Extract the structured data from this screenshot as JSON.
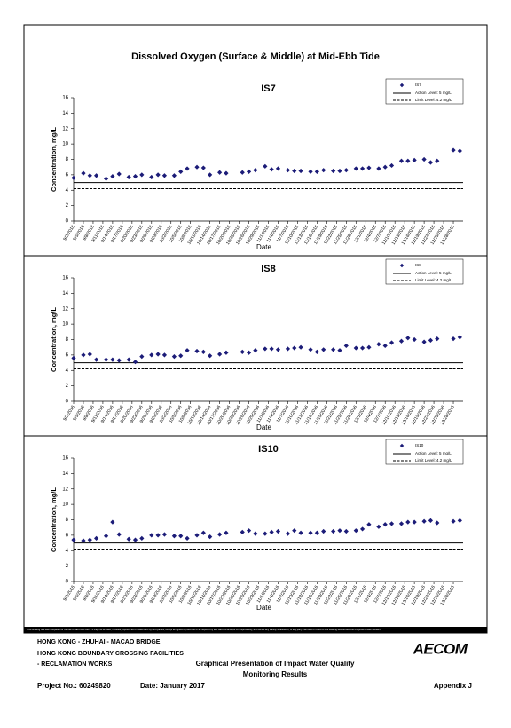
{
  "document": {
    "title": "Dissolved Oxygen (Surface & Middle) at Mid-Ebb Tide",
    "disclaimer": "This Drawing has been prepared for the use of AECOM's client. It may not be used, modified, reproduced or relied upon by third parties, except as agreed by AECOM or as required by law. AECOM accepts no responsibility, and denies any liability whatsoever, to any party that uses or relies on this drawing without AECOM's express written consent.",
    "project_lines": [
      "HONG KONG - ZHUHAI - MACAO BRIDGE",
      "HONG KONG BOUNDARY CROSSING FACILITIES",
      "- RECLAMATION WORKS"
    ],
    "report_title": [
      "Graphical Presentation of Impact Water Quality",
      "Monitoring Results"
    ],
    "project_no": "Project No.: 60249820",
    "date": "Date: January 2017",
    "appendix": "Appendix J",
    "logo": "AECOM"
  },
  "chart_data": [
    {
      "type": "scatter",
      "title": "IS7",
      "xlabel": "Date",
      "ylabel": "Concentration, mg/L",
      "xlim": [
        "9/2/2016",
        "12/31/2016"
      ],
      "ylim": [
        0,
        16
      ],
      "yticks": [
        0,
        2,
        4,
        6,
        8,
        10,
        12,
        14,
        16
      ],
      "xticks": [
        "9/2/2016",
        "9/5/2016",
        "9/8/2016",
        "9/11/2016",
        "9/14/2016",
        "9/17/2016",
        "9/20/2016",
        "9/23/2016",
        "9/26/2016",
        "9/29/2016",
        "10/2/2016",
        "10/5/2016",
        "10/8/2016",
        "10/11/2016",
        "10/14/2016",
        "10/17/2016",
        "10/20/2016",
        "10/23/2016",
        "10/26/2016",
        "10/29/2016",
        "11/1/2016",
        "11/4/2016",
        "11/7/2016",
        "11/10/2016",
        "11/13/2016",
        "11/16/2016",
        "11/19/2016",
        "11/22/2016",
        "11/25/2016",
        "11/28/2016",
        "12/1/2016",
        "12/4/2016",
        "12/7/2016",
        "12/10/2016",
        "12/13/2016",
        "12/16/2016",
        "12/19/2016",
        "12/22/2016",
        "12/25/2016",
        "12/28/2016"
      ],
      "x": [
        "9/2/2016",
        "9/5/2016",
        "9/7/2016",
        "9/9/2016",
        "9/12/2016",
        "9/14/2016",
        "9/16/2016",
        "9/19/2016",
        "9/21/2016",
        "9/23/2016",
        "9/26/2016",
        "9/28/2016",
        "9/30/2016",
        "10/3/2016",
        "10/5/2016",
        "10/7/2016",
        "10/10/2016",
        "10/12/2016",
        "10/14/2016",
        "10/17/2016",
        "10/19/2016",
        "10/24/2016",
        "10/26/2016",
        "10/28/2016",
        "10/31/2016",
        "11/2/2016",
        "11/4/2016",
        "11/7/2016",
        "11/9/2016",
        "11/11/2016",
        "11/14/2016",
        "11/16/2016",
        "11/18/2016",
        "11/21/2016",
        "11/23/2016",
        "11/25/2016",
        "11/28/2016",
        "11/30/2016",
        "12/2/2016",
        "12/5/2016",
        "12/7/2016",
        "12/9/2016",
        "12/12/2016",
        "12/14/2016",
        "12/16/2016",
        "12/19/2016",
        "12/21/2016",
        "12/23/2016",
        "12/28/2016",
        "12/30/2016"
      ],
      "series": [
        {
          "name": "IS7",
          "color": "#1c1c78",
          "values": [
            5.6,
            6.2,
            5.9,
            5.9,
            5.5,
            5.8,
            6.1,
            5.7,
            5.8,
            6.0,
            5.7,
            6.0,
            5.9,
            5.9,
            6.4,
            6.8,
            7.0,
            6.9,
            6.0,
            6.3,
            6.2,
            6.3,
            6.4,
            6.6,
            7.1,
            6.7,
            6.8,
            6.6,
            6.5,
            6.5,
            6.4,
            6.4,
            6.6,
            6.5,
            6.5,
            6.6,
            6.8,
            6.8,
            6.9,
            6.8,
            7.0,
            7.2,
            7.8,
            7.8,
            7.9,
            8.0,
            7.6,
            7.8,
            9.2,
            9.1
          ]
        }
      ],
      "reference_lines": [
        {
          "name": "Action Level: 5 mg/L",
          "value": 5,
          "style": "solid"
        },
        {
          "name": "Limit Level: 4.2 mg/L",
          "value": 4.2,
          "style": "dashed"
        }
      ]
    },
    {
      "type": "scatter",
      "title": "IS8",
      "xlabel": "Date",
      "ylabel": "Concentration, mg/L",
      "xlim": [
        "9/2/2016",
        "12/31/2016"
      ],
      "ylim": [
        0,
        16
      ],
      "yticks": [
        0,
        2,
        4,
        6,
        8,
        10,
        12,
        14,
        16
      ],
      "xticks": [
        "9/2/2016",
        "9/5/2016",
        "9/8/2016",
        "9/11/2016",
        "9/14/2016",
        "9/17/2016",
        "9/20/2016",
        "9/23/2016",
        "9/26/2016",
        "9/29/2016",
        "10/2/2016",
        "10/5/2016",
        "10/8/2016",
        "10/11/2016",
        "10/14/2016",
        "10/17/2016",
        "10/20/2016",
        "10/23/2016",
        "10/26/2016",
        "10/29/2016",
        "11/1/2016",
        "11/4/2016",
        "11/7/2016",
        "11/10/2016",
        "11/13/2016",
        "11/16/2016",
        "11/19/2016",
        "11/22/2016",
        "11/25/2016",
        "11/28/2016",
        "12/1/2016",
        "12/4/2016",
        "12/7/2016",
        "12/10/2016",
        "12/13/2016",
        "12/16/2016",
        "12/19/2016",
        "12/22/2016",
        "12/25/2016",
        "12/28/2016"
      ],
      "x": [
        "9/2/2016",
        "9/5/2016",
        "9/7/2016",
        "9/9/2016",
        "9/12/2016",
        "9/14/2016",
        "9/16/2016",
        "9/19/2016",
        "9/21/2016",
        "9/23/2016",
        "9/26/2016",
        "9/28/2016",
        "9/30/2016",
        "10/3/2016",
        "10/5/2016",
        "10/7/2016",
        "10/10/2016",
        "10/12/2016",
        "10/14/2016",
        "10/17/2016",
        "10/19/2016",
        "10/24/2016",
        "10/26/2016",
        "10/28/2016",
        "10/31/2016",
        "11/2/2016",
        "11/4/2016",
        "11/7/2016",
        "11/9/2016",
        "11/11/2016",
        "11/14/2016",
        "11/16/2016",
        "11/18/2016",
        "11/21/2016",
        "11/23/2016",
        "11/25/2016",
        "11/28/2016",
        "11/30/2016",
        "12/2/2016",
        "12/5/2016",
        "12/7/2016",
        "12/9/2016",
        "12/12/2016",
        "12/14/2016",
        "12/16/2016",
        "12/19/2016",
        "12/21/2016",
        "12/23/2016",
        "12/28/2016",
        "12/30/2016"
      ],
      "series": [
        {
          "name": "IS8",
          "color": "#1c1c78",
          "values": [
            5.6,
            6.0,
            6.1,
            5.4,
            5.4,
            5.4,
            5.3,
            5.4,
            5.1,
            5.8,
            6.0,
            6.1,
            6.0,
            5.8,
            5.9,
            6.6,
            6.5,
            6.4,
            5.9,
            6.1,
            6.3,
            6.4,
            6.3,
            6.6,
            6.8,
            6.8,
            6.7,
            6.8,
            6.9,
            7.0,
            6.7,
            6.4,
            6.7,
            6.7,
            6.6,
            7.2,
            6.9,
            6.9,
            7.0,
            7.4,
            7.2,
            7.6,
            7.8,
            8.2,
            8.0,
            7.7,
            7.9,
            8.1,
            8.1,
            8.3
          ]
        }
      ],
      "reference_lines": [
        {
          "name": "Action Level: 5 mg/L",
          "value": 5,
          "style": "solid"
        },
        {
          "name": "Limit Level: 4.2 mg/L",
          "value": 4.2,
          "style": "dashed"
        }
      ]
    },
    {
      "type": "scatter",
      "title": "IS10",
      "xlabel": "Date",
      "ylabel": "Concentration, mg/L",
      "xlim": [
        "9/2/2016",
        "12/31/2016"
      ],
      "ylim": [
        0,
        16
      ],
      "yticks": [
        0,
        2,
        4,
        6,
        8,
        10,
        12,
        14,
        16
      ],
      "xticks": [
        "9/2/2016",
        "9/5/2016",
        "9/8/2016",
        "9/11/2016",
        "9/14/2016",
        "9/17/2016",
        "9/20/2016",
        "9/23/2016",
        "9/26/2016",
        "9/29/2016",
        "10/2/2016",
        "10/5/2016",
        "10/8/2016",
        "10/11/2016",
        "10/14/2016",
        "10/17/2016",
        "10/20/2016",
        "10/23/2016",
        "10/26/2016",
        "10/29/2016",
        "11/1/2016",
        "11/4/2016",
        "11/7/2016",
        "11/10/2016",
        "11/13/2016",
        "11/16/2016",
        "11/19/2016",
        "11/22/2016",
        "11/25/2016",
        "11/28/2016",
        "12/1/2016",
        "12/4/2016",
        "12/7/2016",
        "12/10/2016",
        "12/13/2016",
        "12/16/2016",
        "12/19/2016",
        "12/22/2016",
        "12/25/2016",
        "12/28/2016"
      ],
      "x": [
        "9/2/2016",
        "9/5/2016",
        "9/7/2016",
        "9/9/2016",
        "9/12/2016",
        "9/14/2016",
        "9/16/2016",
        "9/19/2016",
        "9/21/2016",
        "9/23/2016",
        "9/26/2016",
        "9/28/2016",
        "9/30/2016",
        "10/3/2016",
        "10/5/2016",
        "10/7/2016",
        "10/10/2016",
        "10/12/2016",
        "10/14/2016",
        "10/17/2016",
        "10/19/2016",
        "10/24/2016",
        "10/26/2016",
        "10/28/2016",
        "10/31/2016",
        "11/2/2016",
        "11/4/2016",
        "11/7/2016",
        "11/9/2016",
        "11/11/2016",
        "11/14/2016",
        "11/16/2016",
        "11/18/2016",
        "11/21/2016",
        "11/23/2016",
        "11/25/2016",
        "11/28/2016",
        "11/30/2016",
        "12/2/2016",
        "12/5/2016",
        "12/7/2016",
        "12/9/2016",
        "12/12/2016",
        "12/14/2016",
        "12/16/2016",
        "12/19/2016",
        "12/21/2016",
        "12/23/2016",
        "12/28/2016",
        "12/30/2016"
      ],
      "series": [
        {
          "name": "IS10",
          "color": "#1c1c78",
          "values": [
            5.4,
            5.3,
            5.4,
            5.6,
            5.9,
            7.7,
            6.1,
            5.5,
            5.4,
            5.6,
            6.0,
            6.0,
            6.1,
            5.9,
            5.9,
            5.6,
            6.0,
            6.3,
            5.8,
            6.1,
            6.3,
            6.4,
            6.6,
            6.2,
            6.2,
            6.4,
            6.5,
            6.2,
            6.6,
            6.3,
            6.3,
            6.3,
            6.5,
            6.5,
            6.6,
            6.5,
            6.6,
            6.8,
            7.4,
            7.1,
            7.4,
            7.5,
            7.5,
            7.7,
            7.7,
            7.8,
            7.9,
            7.6,
            7.8,
            7.9
          ]
        }
      ],
      "reference_lines": [
        {
          "name": "Action Level: 5 mg/L",
          "value": 5,
          "style": "solid"
        },
        {
          "name": "Limit Level: 4.2 mg/L",
          "value": 4.2,
          "style": "dashed"
        }
      ]
    }
  ]
}
